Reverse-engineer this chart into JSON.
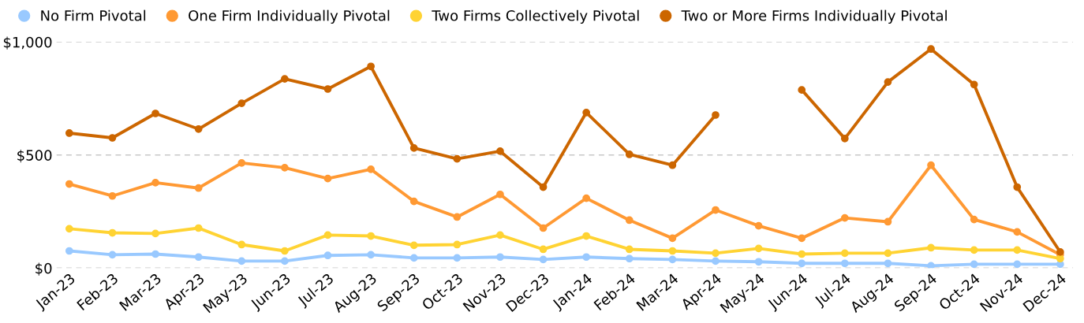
{
  "chart_data": {
    "type": "line",
    "categories": [
      "Jan-23",
      "Feb-23",
      "Mar-23",
      "Apr-23",
      "May-23",
      "Jun-23",
      "Jul-23",
      "Aug-23",
      "Sep-23",
      "Oct-23",
      "Nov-23",
      "Dec-23",
      "Jan-24",
      "Feb-24",
      "Mar-24",
      "Apr-24",
      "May-24",
      "Jun-24",
      "Jul-24",
      "Aug-24",
      "Sep-24",
      "Oct-24",
      "Nov-24",
      "Dec-24"
    ],
    "series": [
      {
        "name": "No Firm Pivotal",
        "color": "#99c9ff",
        "values": [
          76,
          59,
          62,
          49,
          31,
          31,
          56,
          59,
          45,
          45,
          49,
          38,
          49,
          42,
          38,
          31,
          28,
          21,
          21,
          21,
          10,
          17,
          17,
          17
        ]
      },
      {
        "name": "One Firm Individually Pivotal",
        "color": "#ff9933",
        "values": [
          372,
          319,
          378,
          354,
          465,
          444,
          396,
          437,
          295,
          226,
          326,
          177,
          309,
          212,
          132,
          257,
          187,
          132,
          222,
          205,
          455,
          215,
          160,
          59
        ]
      },
      {
        "name": "Two Firms Collectively Pivotal",
        "color": "#ffd333",
        "values": [
          174,
          156,
          153,
          177,
          104,
          76,
          146,
          142,
          101,
          104,
          146,
          83,
          142,
          83,
          76,
          66,
          87,
          62,
          66,
          66,
          90,
          80,
          80,
          42
        ]
      },
      {
        "name": "Two or More Firms Individually Pivotal",
        "color": "#cc6600",
        "values": [
          597,
          576,
          684,
          615,
          729,
          837,
          792,
          892,
          531,
          483,
          517,
          358,
          688,
          503,
          455,
          677,
          null,
          788,
          573,
          823,
          969,
          812,
          358,
          71
        ]
      }
    ],
    "ylim": [
      0,
      1000
    ],
    "yticks": [
      {
        "value": 0,
        "label": "$0"
      },
      {
        "value": 500,
        "label": "$500"
      },
      {
        "value": 1000,
        "label": "$1,000"
      }
    ],
    "grid": "y",
    "legend": "top left",
    "marker": "circle",
    "line_style": "solid"
  }
}
